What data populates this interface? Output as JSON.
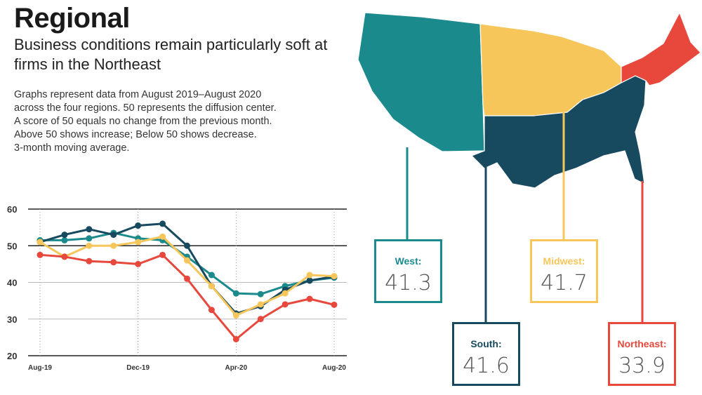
{
  "header": {
    "title": "Regional",
    "subtitle": "Business conditions remain particularly soft at firms in the Northeast",
    "description": [
      "Graphs represent data from August 2019–August 2020",
      "across the four regions. 50 represents the diffusion center.",
      "A score of 50 equals no change from the previous month.",
      "Above 50 shows increase; Below 50 shows decrease.",
      "3-month moving average."
    ]
  },
  "chart_data": {
    "type": "line",
    "x": [
      "Aug-19",
      "Sep-19",
      "Oct-19",
      "Nov-19",
      "Dec-19",
      "Jan-20",
      "Feb-20",
      "Mar-20",
      "Apr-20",
      "May-20",
      "Jun-20",
      "Jul-20",
      "Aug-20"
    ],
    "x_tick_labels": {
      "0": "Aug-19",
      "4": "Dec-19",
      "8": "Apr-20",
      "12": "Aug-20"
    },
    "ylim": [
      20,
      60
    ],
    "yticks": [
      20,
      30,
      40,
      50,
      60
    ],
    "series": [
      {
        "name": "West",
        "color": "#1b8a8c",
        "values": [
          51.5,
          51.5,
          52.0,
          53.5,
          52.0,
          51.5,
          47.0,
          42.0,
          37.0,
          36.8,
          39.0,
          40.5,
          41.3
        ]
      },
      {
        "name": "South",
        "color": "#174a5f",
        "values": [
          51.0,
          53.0,
          54.5,
          53.0,
          55.5,
          56.0,
          50.0,
          39.0,
          31.5,
          33.5,
          38.0,
          40.5,
          41.6
        ]
      },
      {
        "name": "Midwest",
        "color": "#f7c65a",
        "values": [
          51.0,
          47.0,
          50.0,
          50.0,
          51.0,
          52.5,
          46.0,
          39.0,
          31.0,
          34.0,
          37.0,
          42.0,
          41.7
        ]
      },
      {
        "name": "Northeast",
        "color": "#e8473c",
        "values": [
          47.5,
          47.0,
          45.8,
          45.5,
          45.0,
          47.5,
          41.0,
          32.5,
          24.5,
          30.0,
          34.0,
          35.5,
          33.9
        ]
      }
    ]
  },
  "regions": [
    {
      "name": "West:",
      "value": "41.3",
      "color": "#1b8a8c"
    },
    {
      "name": "South:",
      "value": "41.6",
      "color": "#174a5f"
    },
    {
      "name": "Midwest:",
      "value": "41.7",
      "color": "#f7c65a"
    },
    {
      "name": "Northeast:",
      "value": "33.9",
      "color": "#e8473c"
    }
  ]
}
